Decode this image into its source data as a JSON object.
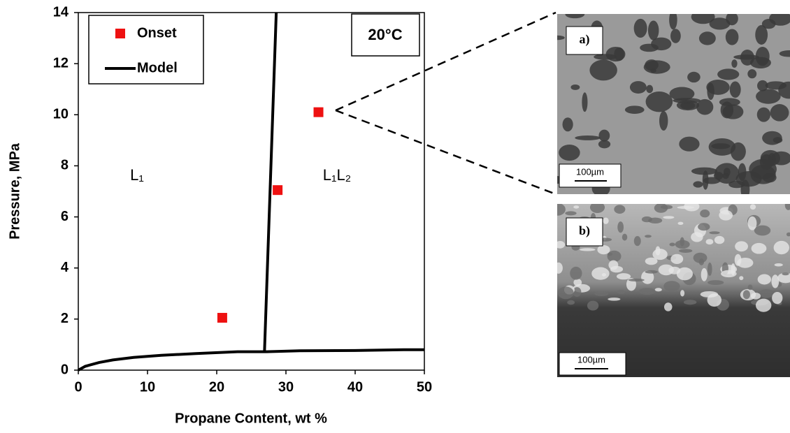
{
  "chart_data": {
    "type": "scatter-line",
    "xlabel": "Propane Content, wt %",
    "ylabel": "Pressure, MPa",
    "xlim": [
      0,
      50
    ],
    "xticks": [
      0,
      10,
      20,
      30,
      40,
      50
    ],
    "ylim": [
      0,
      14
    ],
    "yticks": [
      0,
      2,
      4,
      6,
      8,
      10,
      12,
      14
    ],
    "grid": false,
    "legend": "upper left",
    "series": [
      {
        "name": "Onset",
        "kind": "scatter",
        "color": "#ee1111",
        "x": [
          20.8,
          28.8,
          34.7
        ],
        "values": [
          2.05,
          7.05,
          10.1
        ]
      },
      {
        "name": "Model",
        "kind": "line",
        "color": "#000000",
        "x": [
          0,
          1,
          3,
          5,
          8,
          12,
          17,
          23,
          27,
          32,
          40,
          47,
          50,
          null,
          26.9,
          28.6
        ],
        "values": [
          0,
          0.15,
          0.3,
          0.4,
          0.5,
          0.58,
          0.65,
          0.72,
          0.72,
          0.76,
          0.77,
          0.8,
          0.8,
          null,
          0.72,
          14
        ]
      }
    ],
    "annotations": [
      "20°C",
      "L₁",
      "L₁L₂"
    ]
  },
  "panels": [
    {
      "label": "a)",
      "scale": "100µm"
    },
    {
      "label": "b)",
      "scale": "100µm"
    }
  ]
}
